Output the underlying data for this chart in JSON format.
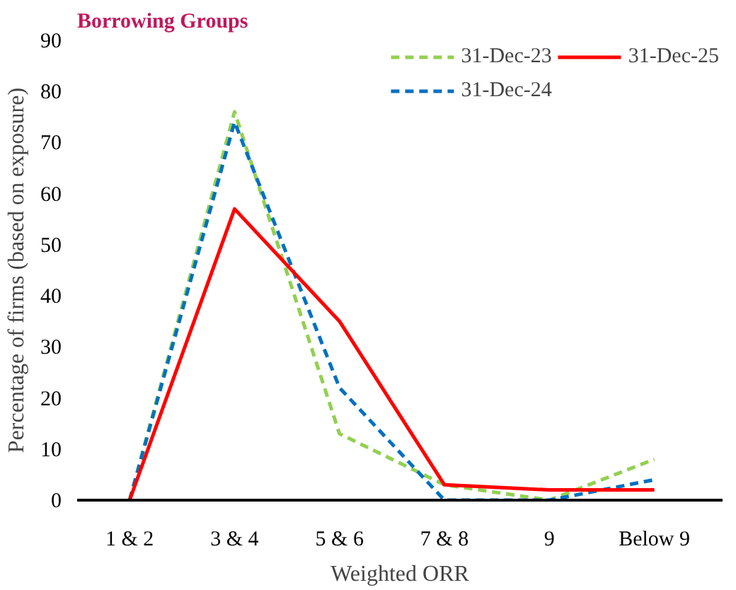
{
  "chart_data": {
    "type": "line",
    "title": "Borrowing Groups",
    "xlabel": "Weighted ORR",
    "ylabel": "Percentage of firms (based on exposure)",
    "categories": [
      "1 & 2",
      "3 & 4",
      "5 & 6",
      "7 & 8",
      "9",
      "Below 9"
    ],
    "series": [
      {
        "name": "31-Dec-23",
        "color": "#92d050",
        "line_style": "dashed",
        "values": [
          0,
          76,
          13,
          3,
          0,
          8
        ]
      },
      {
        "name": "31-Dec-24",
        "color": "#0070c0",
        "line_style": "dashed",
        "values": [
          0,
          74,
          22,
          0,
          0,
          4
        ]
      },
      {
        "name": "31-Dec-25",
        "color": "#ff0000",
        "line_style": "solid",
        "values": [
          0,
          57,
          35,
          3,
          2,
          2
        ]
      }
    ],
    "ylim": [
      0,
      90
    ],
    "yticks": [
      0,
      10,
      20,
      30,
      40,
      50,
      60,
      70,
      80,
      90
    ],
    "grid": false,
    "legend": "top",
    "marker": "none"
  }
}
